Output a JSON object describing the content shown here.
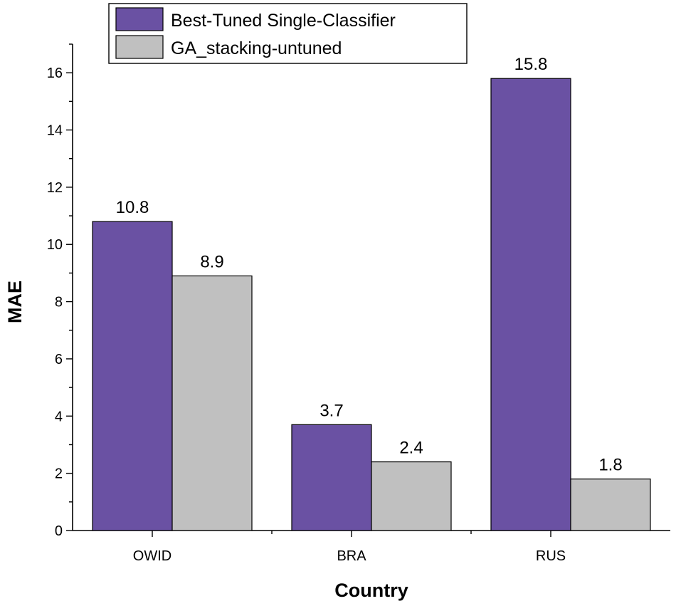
{
  "chart_data": {
    "type": "bar",
    "title": "",
    "xlabel": "Country",
    "ylabel": "MAE",
    "ylim": [
      0,
      17
    ],
    "yticks": [
      0,
      2,
      4,
      6,
      8,
      10,
      12,
      14,
      16
    ],
    "categories": [
      "OWID",
      "BRA",
      "RUS"
    ],
    "series": [
      {
        "name": "Best-Tuned Single-Classifier",
        "color": "#6a51a3",
        "values": [
          10.8,
          3.7,
          15.8
        ],
        "labels": [
          "10.8",
          "3.7",
          "15.8"
        ]
      },
      {
        "name": "GA_stacking-untuned",
        "color": "#c0c0c0",
        "values": [
          8.9,
          2.4,
          1.8
        ],
        "labels": [
          "8.9",
          "2.4",
          "1.8"
        ]
      }
    ],
    "legend_position": "top-left",
    "grid": false
  }
}
